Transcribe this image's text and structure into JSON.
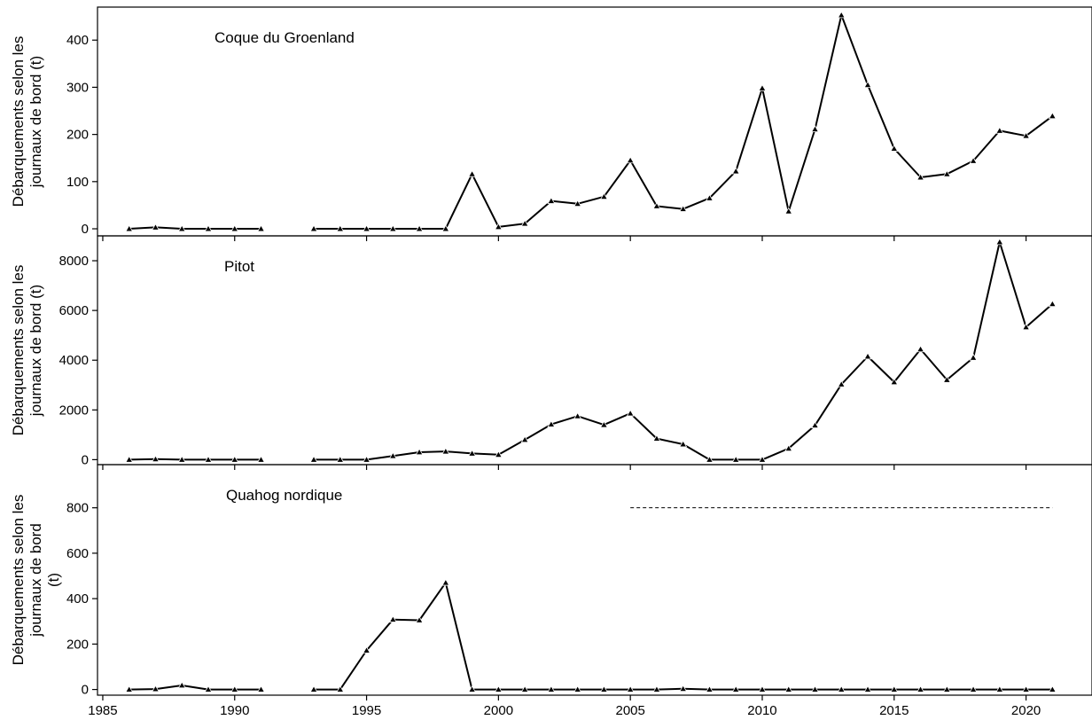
{
  "chart_data": [
    {
      "type": "line",
      "title": "Coque du Groenland",
      "ylabel": [
        "Débarquements selon les",
        "journaux de bord (t)"
      ],
      "xlim": [
        1984.8,
        2022.5
      ],
      "ylim": [
        -15,
        470
      ],
      "yticks": [
        0,
        100,
        200,
        300,
        400
      ],
      "segments": [
        {
          "x": [
            1986,
            1987,
            1988,
            1989,
            1990,
            1991
          ],
          "y": [
            0,
            3,
            0,
            0,
            0,
            0
          ]
        },
        {
          "x": [
            1993,
            1994,
            1995,
            1996,
            1997,
            1998,
            1999,
            2000,
            2001,
            2002,
            2003,
            2004,
            2005,
            2006,
            2007,
            2008,
            2009,
            2010,
            2011,
            2012,
            2013,
            2014,
            2015,
            2016,
            2017,
            2018,
            2019,
            2020,
            2021
          ],
          "y": [
            0,
            0,
            0,
            0,
            0,
            0,
            116,
            4,
            11,
            59,
            53,
            68,
            145,
            48,
            42,
            65,
            122,
            298,
            37,
            211,
            453,
            305,
            170,
            109,
            116,
            144,
            208,
            197,
            239
          ]
        }
      ]
    },
    {
      "type": "line",
      "title": "Pitot",
      "ylabel": [
        "Débarquements selon les",
        "journaux de bord (t)"
      ],
      "xlim": [
        1984.8,
        2022.5
      ],
      "ylim": [
        -200,
        9000
      ],
      "yticks": [
        0,
        2000,
        4000,
        6000,
        8000
      ],
      "segments": [
        {
          "x": [
            1986,
            1987,
            1988,
            1989,
            1990,
            1991
          ],
          "y": [
            0,
            20,
            0,
            0,
            0,
            0
          ]
        },
        {
          "x": [
            1993,
            1994,
            1995,
            1996,
            1997,
            1998,
            1999,
            2000,
            2001,
            2002,
            2003,
            2004,
            2005,
            2006,
            2007,
            2008,
            2009,
            2010,
            2011,
            2012,
            2013,
            2014,
            2015,
            2016,
            2017,
            2018,
            2019,
            2020,
            2021
          ],
          "y": [
            0,
            0,
            0,
            150,
            300,
            330,
            250,
            200,
            800,
            1420,
            1750,
            1400,
            1860,
            850,
            620,
            0,
            0,
            0,
            450,
            1380,
            3030,
            4150,
            3120,
            4440,
            3210,
            4100,
            8750,
            5330,
            6260
          ]
        }
      ]
    },
    {
      "type": "line",
      "title": "Quahog nordique",
      "ylabel": [
        "Débarquements selon les",
        "journaux de bord",
        "(t)"
      ],
      "xlim": [
        1984.8,
        2022.5
      ],
      "ylim": [
        -25,
        990
      ],
      "yticks": [
        0,
        200,
        400,
        600,
        800
      ],
      "xticks": [
        1985,
        1990,
        1995,
        2000,
        2005,
        2010,
        2015,
        2020
      ],
      "segments": [
        {
          "x": [
            1986,
            1987,
            1988,
            1989,
            1990,
            1991
          ],
          "y": [
            0,
            2,
            18,
            0,
            0,
            0
          ]
        },
        {
          "x": [
            1993,
            1994,
            1995,
            1996,
            1997,
            1998,
            1999,
            2000,
            2001,
            2002,
            2003,
            2004,
            2005,
            2006,
            2007,
            2008,
            2009,
            2010,
            2011,
            2012,
            2013,
            2014,
            2015,
            2016,
            2017,
            2018,
            2019,
            2020,
            2021
          ],
          "y": [
            0,
            0,
            172,
            308,
            305,
            470,
            0,
            0,
            0,
            0,
            0,
            0,
            0,
            0,
            3,
            0,
            0,
            0,
            0,
            0,
            0,
            0,
            0,
            0,
            0,
            0,
            0,
            0,
            0
          ]
        }
      ],
      "reference_line": {
        "x": [
          2005,
          2021
        ],
        "y": 800,
        "style": "dashed"
      }
    }
  ]
}
